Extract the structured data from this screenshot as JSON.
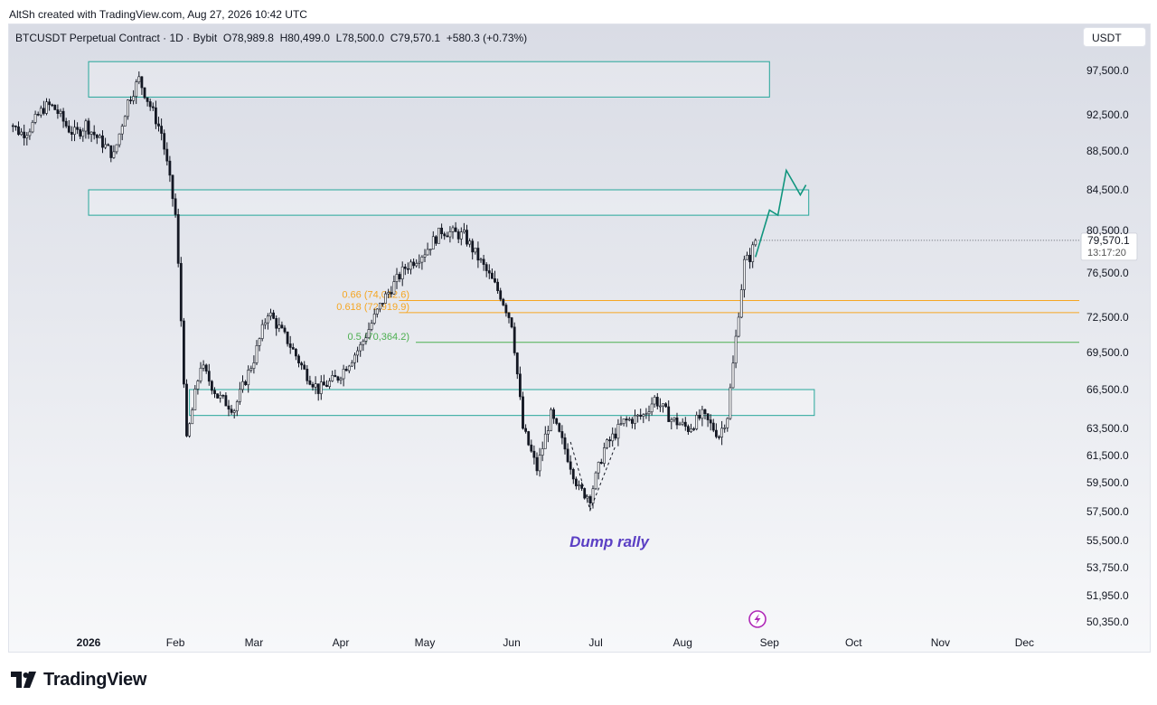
{
  "header": {
    "created_by": "AltSh created with TradingView.com, Aug 27, 2026 10:42 UTC"
  },
  "legend": {
    "symbol": "BTCUSDT Perpetual Contract · 1D · Bybit",
    "open": "O78,989.8",
    "high": "H80,499.0",
    "low": "L78,500.0",
    "close": "C79,570.1",
    "change": "+580.3 (+0.73%)"
  },
  "currency": "USDT",
  "price_tag": {
    "price": "79,570.1",
    "countdown": "13:17:20"
  },
  "annotation": "Dump rally",
  "brand": "TradingView",
  "colors": {
    "up": "#ffffff",
    "down": "#131722",
    "zone": "#26a69a",
    "fib_orange": "#f5a623",
    "fib_green": "#4caf50",
    "projection": "#10957e",
    "annotation": "#5b3fc4",
    "lightning": "#b02ab8"
  },
  "chart_data": {
    "type": "candlestick",
    "title": "BTCUSDT Perpetual Contract · 1D · Bybit",
    "x_ticks": [
      "2026",
      "Feb",
      "Mar",
      "Apr",
      "May",
      "Jun",
      "Jul",
      "Aug",
      "Sep",
      "Oct",
      "Nov",
      "Dec"
    ],
    "y_ticks": [
      "97,500.0",
      "92,500.0",
      "88,500.0",
      "84,500.0",
      "80,500.0",
      "76,500.0",
      "72,500.0",
      "69,500.0",
      "66,500.0",
      "63,500.0",
      "61,500.0",
      "59,500.0",
      "57,500.0",
      "55,500.0",
      "53,750.0",
      "51,950.0",
      "50,350.0"
    ],
    "y_tick_values": [
      97500,
      92500,
      88500,
      84500,
      80500,
      76500,
      72500,
      69500,
      66500,
      63500,
      61500,
      59500,
      57500,
      55500,
      53750,
      51950,
      50350
    ],
    "key_points": [
      {
        "date": "2026-01-01",
        "price": 91000
      },
      {
        "date": "2026-01-10",
        "price": 88000
      },
      {
        "date": "2026-01-15",
        "price": 94000
      },
      {
        "date": "2026-01-19",
        "price": 96500
      },
      {
        "date": "2026-01-27",
        "price": 90500
      },
      {
        "date": "2026-02-01",
        "price": 82000
      },
      {
        "date": "2026-02-05",
        "price": 62500
      },
      {
        "date": "2026-02-10",
        "price": 68500
      },
      {
        "date": "2026-02-16",
        "price": 66000
      },
      {
        "date": "2026-02-22",
        "price": 65000
      },
      {
        "date": "2026-03-01",
        "price": 69000
      },
      {
        "date": "2026-03-06",
        "price": 73000
      },
      {
        "date": "2026-03-13",
        "price": 70500
      },
      {
        "date": "2026-03-19",
        "price": 68000
      },
      {
        "date": "2026-03-24",
        "price": 66500
      },
      {
        "date": "2026-03-31",
        "price": 67500
      },
      {
        "date": "2026-04-08",
        "price": 70000
      },
      {
        "date": "2026-04-16",
        "price": 74000
      },
      {
        "date": "2026-04-24",
        "price": 77000
      },
      {
        "date": "2026-05-01",
        "price": 78500
      },
      {
        "date": "2026-05-07",
        "price": 80500
      },
      {
        "date": "2026-05-15",
        "price": 80000
      },
      {
        "date": "2026-05-21",
        "price": 77500
      },
      {
        "date": "2026-05-28",
        "price": 74500
      },
      {
        "date": "2026-06-01",
        "price": 72000
      },
      {
        "date": "2026-06-05",
        "price": 63500
      },
      {
        "date": "2026-06-10",
        "price": 60500
      },
      {
        "date": "2026-06-15",
        "price": 64500
      },
      {
        "date": "2026-06-20",
        "price": 62000
      },
      {
        "date": "2026-06-25",
        "price": 59000
      },
      {
        "date": "2026-06-29",
        "price": 58500
      },
      {
        "date": "2026-07-04",
        "price": 62000
      },
      {
        "date": "2026-07-11",
        "price": 64000
      },
      {
        "date": "2026-07-18",
        "price": 64500
      },
      {
        "date": "2026-07-22",
        "price": 65800
      },
      {
        "date": "2026-07-28",
        "price": 64200
      },
      {
        "date": "2026-08-03",
        "price": 63500
      },
      {
        "date": "2026-08-08",
        "price": 64500
      },
      {
        "date": "2026-08-14",
        "price": 63000
      },
      {
        "date": "2026-08-17",
        "price": 64500
      },
      {
        "date": "2026-08-19",
        "price": 68500
      },
      {
        "date": "2026-08-21",
        "price": 73000
      },
      {
        "date": "2026-08-23",
        "price": 77500
      },
      {
        "date": "2026-08-25",
        "price": 78000
      },
      {
        "date": "2026-08-27",
        "price": 79570
      }
    ],
    "zones": [
      {
        "from": "2026-01-01",
        "to": "2026-09-01",
        "low": 94500,
        "high": 98500
      },
      {
        "from": "2026-01-01",
        "to": "2026-09-15",
        "low": 82000,
        "high": 84500
      },
      {
        "from": "2026-02-06",
        "to": "2026-09-17",
        "low": 64500,
        "high": 66500
      }
    ],
    "fib_levels": [
      {
        "label": "0.66 (74,012.6)",
        "ratio": 0.66,
        "price": 74012.6,
        "color": "orange"
      },
      {
        "label": "0.618 (72,919.9)",
        "ratio": 0.618,
        "price": 72919.9,
        "color": "orange"
      },
      {
        "label": "0.5 (70,364.2)",
        "ratio": 0.5,
        "price": 70364.2,
        "color": "green"
      }
    ],
    "projection": [
      {
        "date": "2026-08-27",
        "price": 78000
      },
      {
        "date": "2026-09-01",
        "price": 82500
      },
      {
        "date": "2026-09-04",
        "price": 82000
      },
      {
        "date": "2026-09-07",
        "price": 86500
      },
      {
        "date": "2026-09-10",
        "price": 85000
      },
      {
        "date": "2026-09-12",
        "price": 84000
      },
      {
        "date": "2026-09-14",
        "price": 85000
      }
    ],
    "last_price": 79570.1
  }
}
